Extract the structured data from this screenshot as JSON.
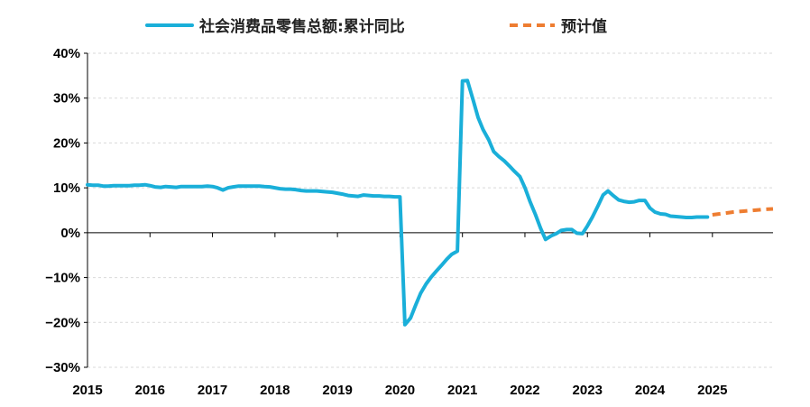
{
  "legend": {
    "actual_label": "社会消费品零售总额:累计同比",
    "forecast_label": "预计值"
  },
  "colors": {
    "actual": "#1aafd9",
    "forecast": "#ee7d31",
    "grid": "#d9d9d9",
    "axis": "#000000"
  },
  "chart_data": {
    "type": "line",
    "title": "",
    "xlabel": "",
    "ylabel": "",
    "ylim": [
      -30,
      40
    ],
    "xlim": [
      2015.0,
      2025.97
    ],
    "y_ticks": [
      40,
      30,
      20,
      10,
      0,
      -10,
      -20,
      -30
    ],
    "y_tick_labels": [
      "40%",
      "30%",
      "20%",
      "10%",
      "0%",
      "−10%",
      "−20%",
      "−30%"
    ],
    "x_tick_labels": [
      "2015",
      "2016",
      "2017",
      "2018",
      "2019",
      "2020",
      "2021",
      "2022",
      "2023",
      "2024",
      "2025"
    ],
    "x_tick_values": [
      2015,
      2016,
      2017,
      2018,
      2019,
      2020,
      2021,
      2022,
      2023,
      2024,
      2025
    ],
    "grid": true,
    "legend_position": "top",
    "series": [
      {
        "name": "社会消费品零售总额:累计同比",
        "style": "solid",
        "x": [
          2015.0,
          2015.08,
          2015.17,
          2015.25,
          2015.33,
          2015.42,
          2015.5,
          2015.58,
          2015.67,
          2015.75,
          2015.83,
          2015.92,
          2016.0,
          2016.08,
          2016.17,
          2016.25,
          2016.33,
          2016.42,
          2016.5,
          2016.58,
          2016.67,
          2016.75,
          2016.83,
          2016.92,
          2017.0,
          2017.08,
          2017.17,
          2017.25,
          2017.33,
          2017.42,
          2017.5,
          2017.58,
          2017.67,
          2017.75,
          2017.83,
          2017.92,
          2018.0,
          2018.08,
          2018.17,
          2018.25,
          2018.33,
          2018.42,
          2018.5,
          2018.58,
          2018.67,
          2018.75,
          2018.83,
          2018.92,
          2019.0,
          2019.08,
          2019.17,
          2019.25,
          2019.33,
          2019.42,
          2019.5,
          2019.58,
          2019.67,
          2019.75,
          2019.83,
          2019.92,
          2020.0,
          2020.08,
          2020.17,
          2020.25,
          2020.33,
          2020.42,
          2020.5,
          2020.58,
          2020.67,
          2020.75,
          2020.83,
          2020.92,
          2021.0,
          2021.08,
          2021.17,
          2021.25,
          2021.33,
          2021.42,
          2021.5,
          2021.58,
          2021.67,
          2021.75,
          2021.83,
          2021.92,
          2022.0,
          2022.08,
          2022.17,
          2022.25,
          2022.33,
          2022.42,
          2022.5,
          2022.58,
          2022.67,
          2022.75,
          2022.83,
          2022.92,
          2023.0,
          2023.08,
          2023.17,
          2023.25,
          2023.33,
          2023.42,
          2023.5,
          2023.58,
          2023.67,
          2023.75,
          2023.83,
          2023.92,
          2024.0,
          2024.08,
          2024.17,
          2024.25,
          2024.33,
          2024.42,
          2024.5,
          2024.58,
          2024.67,
          2024.75,
          2024.83,
          2024.92
        ],
        "values": [
          10.7,
          10.6,
          10.6,
          10.4,
          10.4,
          10.5,
          10.5,
          10.5,
          10.5,
          10.6,
          10.6,
          10.7,
          10.5,
          10.2,
          10.1,
          10.3,
          10.2,
          10.1,
          10.3,
          10.3,
          10.3,
          10.3,
          10.3,
          10.4,
          10.3,
          10.0,
          9.5,
          10.0,
          10.2,
          10.4,
          10.4,
          10.4,
          10.4,
          10.4,
          10.3,
          10.2,
          10.0,
          9.8,
          9.7,
          9.7,
          9.6,
          9.4,
          9.3,
          9.3,
          9.3,
          9.2,
          9.1,
          9.0,
          8.8,
          8.6,
          8.3,
          8.2,
          8.1,
          8.4,
          8.3,
          8.2,
          8.2,
          8.1,
          8.1,
          8.0,
          8.0,
          -20.5,
          -19.0,
          -16.2,
          -13.5,
          -11.4,
          -9.9,
          -8.6,
          -7.2,
          -5.9,
          -4.8,
          -4.1,
          33.8,
          33.9,
          29.6,
          25.7,
          23.0,
          20.7,
          18.1,
          17.0,
          16.0,
          14.9,
          13.7,
          12.5,
          10.0,
          7.0,
          4.0,
          1.0,
          -1.5,
          -0.7,
          -0.2,
          0.5,
          0.7,
          0.7,
          -0.1,
          -0.2,
          1.5,
          3.5,
          6.0,
          8.4,
          9.3,
          8.2,
          7.3,
          7.0,
          6.8,
          6.9,
          7.2,
          7.2,
          5.5,
          4.6,
          4.2,
          4.1,
          3.7,
          3.6,
          3.5,
          3.4,
          3.4,
          3.5,
          3.5,
          3.5
        ]
      },
      {
        "name": "预计值",
        "style": "dashed",
        "x": [
          2025.0,
          2025.17,
          2025.33,
          2025.5,
          2025.67,
          2025.83,
          2025.97
        ],
        "values": [
          4.0,
          4.3,
          4.6,
          4.8,
          5.0,
          5.2,
          5.3
        ]
      }
    ]
  }
}
